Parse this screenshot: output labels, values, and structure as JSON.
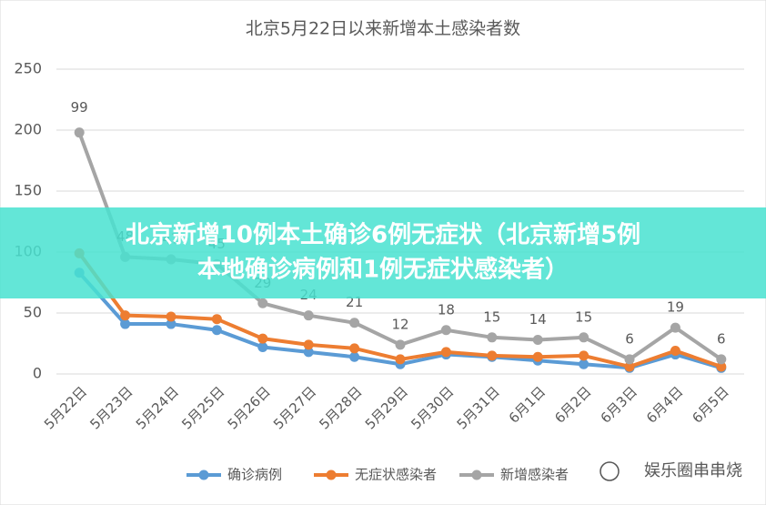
{
  "chart_data": {
    "type": "stacked-line",
    "title": "北京5月22日以来新增本土感染者数",
    "categories": [
      "5月22日",
      "5月23日",
      "5月24日",
      "5月25日",
      "5月26日",
      "5月27日",
      "5月28日",
      "5月29日",
      "5月30日",
      "5月31日",
      "6月1日",
      "6月2日",
      "6月3日",
      "6月4日",
      "6月5日"
    ],
    "series": [
      {
        "name": "确诊病例",
        "color": "#5b9bd5",
        "values": [
          83,
          41,
          41,
          36,
          22,
          18,
          14,
          8,
          16,
          14,
          11,
          8,
          5,
          16,
          5
        ]
      },
      {
        "name": "无症状感染者",
        "color": "#ed7d31",
        "values": [
          16,
          7,
          6,
          9,
          7,
          6,
          7,
          4,
          2,
          1,
          3,
          7,
          1,
          3,
          1
        ]
      },
      {
        "name": "新增感染者",
        "color": "#a5a5a5",
        "values": [
          99,
          48,
          47,
          45,
          29,
          24,
          21,
          12,
          18,
          15,
          14,
          15,
          6,
          19,
          6
        ],
        "data_labels": true
      }
    ],
    "ylim": [
      0,
      250
    ],
    "yticks": [
      0,
      50,
      100,
      150,
      200,
      250
    ],
    "grid": true,
    "legend": "bottom"
  },
  "overlay": {
    "lines": [
      "北京新增10例本土确诊6例无症状（北京新增5例",
      "本地确诊病例和1例无症状感染者）"
    ]
  },
  "watermark": "娱乐圈串串烧"
}
